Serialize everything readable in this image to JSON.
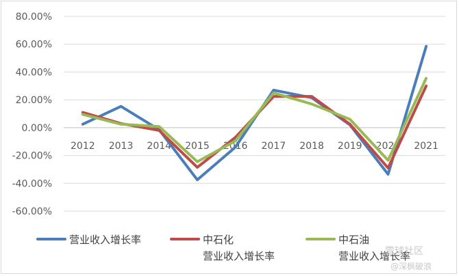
{
  "chart_data": {
    "type": "line",
    "title": "",
    "xlabel": "",
    "ylabel": "",
    "categories": [
      "2012",
      "2013",
      "2014",
      "2015",
      "2016",
      "2017",
      "2018",
      "2019",
      "2020",
      "2021"
    ],
    "ylim": [
      -60,
      80
    ],
    "yticks": [
      80,
      60,
      40,
      20,
      0,
      -20,
      -40,
      -60
    ],
    "ytick_labels": [
      "80.00%",
      "60.00%",
      "40.00%",
      "20.00%",
      "0.00%",
      "-20.00%",
      "-40.00%",
      "-60.00%"
    ],
    "grid": true,
    "legend_position": "bottom",
    "series": [
      {
        "name": "营业收入增长率",
        "color": "#4a7ebb",
        "values": [
          2.5,
          15.3,
          -1.5,
          -37.5,
          -14.0,
          27.0,
          21.5,
          2.0,
          -33.5,
          58.5
        ]
      },
      {
        "name": "中石化\n营业收入增长率",
        "color": "#be4b48",
        "values": [
          11.0,
          3.0,
          -2.0,
          -28.5,
          -7.0,
          22.5,
          22.5,
          2.5,
          -29.0,
          30.0
        ]
      },
      {
        "name": "中石油\n营业收入增长率",
        "color": "#98b954",
        "values": [
          9.5,
          2.5,
          0.8,
          -24.5,
          -9.5,
          25.0,
          17.0,
          6.0,
          -23.5,
          35.5
        ]
      }
    ],
    "legend": [
      {
        "lines": [
          "营业收入增长率"
        ]
      },
      {
        "lines": [
          "中石化",
          "营业收入增长率"
        ]
      },
      {
        "lines": [
          "中石油",
          "营业收入增长率"
        ]
      }
    ]
  },
  "watermark": {
    "line1": "雪球社区",
    "line2": "@深枫破浪"
  }
}
